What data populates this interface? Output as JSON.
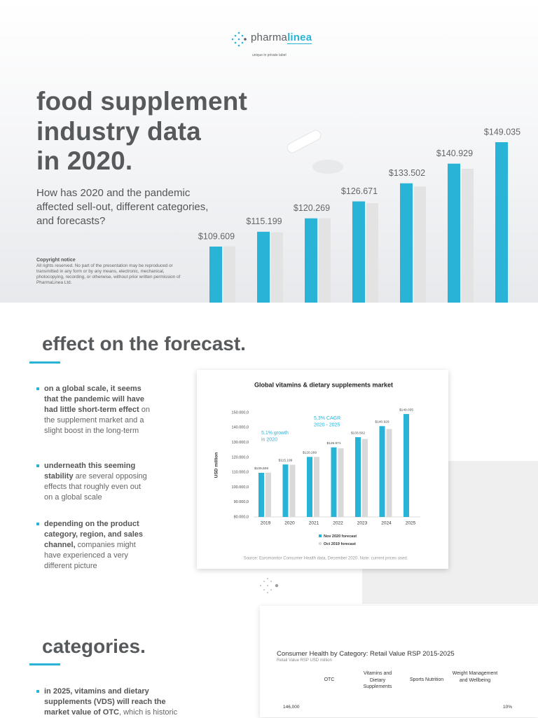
{
  "header": {
    "brand_a": "pharma",
    "brand_b": "linea",
    "tagline": "unique in private label"
  },
  "hero": {
    "title_lines": [
      "food supplement",
      "industry data",
      "in 2020."
    ],
    "subtitle": "How has 2020 and the pandemic affected sell-out, different categories, and forecasts?",
    "copyright_title": "Copyright notice",
    "copyright_text": "All rights reserved. No part of the presentation may be reproduced or transmitted in any form or by any means, electronic, mechanical, photocopying, recording, or otherwise, without prior written permission of PharmaLinea Ltd."
  },
  "forecast_section": {
    "heading": "effect on the forecast.",
    "bullets": [
      {
        "bold": "on a global scale, it seems that the pandemic will have had little short-term effect",
        "text": " on the supplement market and a slight boost in the long-term"
      },
      {
        "bold": "underneath this seeming stability",
        "text": " are several opposing effects that roughly even out on a global scale"
      },
      {
        "bold": "depending on the product category, region, and sales channel,",
        "text": " companies might have experienced a very different picture"
      }
    ]
  },
  "chart_data": {
    "type": "bar",
    "title": "Global vitamins & dietary supplements market",
    "y_label": "USD million",
    "categories": [
      "2019",
      "2020",
      "2021",
      "2022",
      "2023",
      "2024",
      "2025"
    ],
    "series": [
      {
        "name": "Nov 2020 forecast",
        "color": "#29b3d6",
        "values": [
          109609,
          115199,
          120269,
          126671,
          133502,
          140929,
          149035
        ],
        "value_labels": [
          "$109.609",
          "$115.199",
          "$120.269",
          "$126.671",
          "$133.502",
          "$140.929",
          "$149.035"
        ]
      },
      {
        "name": "Oct 2019 forecast",
        "color": "#d9d9d9",
        "values": [
          109700,
          115000,
          120300,
          126000,
          132300,
          139000,
          null
        ]
      }
    ],
    "ylim": [
      80000,
      150000
    ],
    "yticks": [
      {
        "value": 80000,
        "label": "80.000,0"
      },
      {
        "value": 90000,
        "label": "90.000,0"
      },
      {
        "value": 100000,
        "label": "100.000,0"
      },
      {
        "value": 110000,
        "label": "110.000,0"
      },
      {
        "value": 120000,
        "label": "120.000,0"
      },
      {
        "value": 130000,
        "label": "130.000,0"
      },
      {
        "value": 140000,
        "label": "140.000,0"
      },
      {
        "value": 150000,
        "label": "150.000,0"
      }
    ],
    "grid": false,
    "annotations": [
      {
        "lines": [
          "5,1% growth",
          "in 2020"
        ]
      },
      {
        "lines": [
          "5,3% CAGR",
          "2020 - 2025"
        ]
      }
    ],
    "source": "Source: Euromonitor Consumer Health data, December 2020. Note: current prices used."
  },
  "categories_section": {
    "heading": "categories.",
    "bullets": [
      {
        "bold": "in 2025, vitamins and dietary supplements (VDS) will reach the market value of OTC",
        "text": ", which is historic"
      }
    ]
  },
  "category_chart": {
    "title": "Consumer Health by Category: Retail Value RSP 2015-2025",
    "subtitle": "Retail Value RSP USD million",
    "columns": [
      "OTC",
      "Vitamins and Dietary Supplements",
      "Sports Nutrition",
      "Weight Management and Wellbeing"
    ],
    "left_tick": "146,000",
    "right_tick": "10%"
  }
}
